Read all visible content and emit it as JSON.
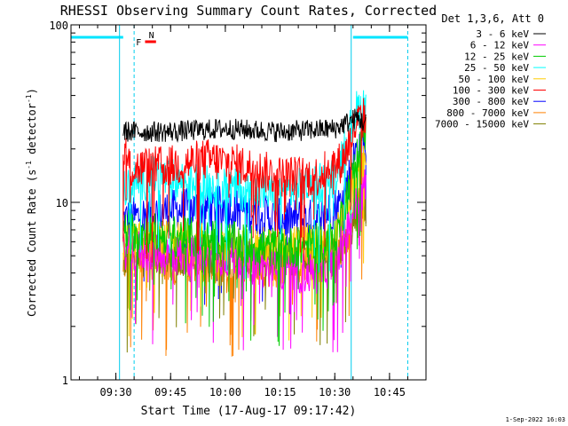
{
  "chart_data": {
    "type": "line",
    "title": "RHESSI Observing Summary Count Rates, Corrected",
    "xlabel": "Start Time (17-Aug-17 09:17:42)",
    "ylabel": "Corrected Count Rate (s⁻¹ detector⁻¹)",
    "ylabel_main": "Corrected Count Rate (s",
    "ylabel_sup1": "-1",
    "ylabel_mid": " detector",
    "ylabel_sup2": "-1",
    "ylabel_end": ")",
    "yscale": "log",
    "ylim": [
      1,
      100
    ],
    "xlim": [
      "09:17:42",
      "10:55:00"
    ],
    "x_ticks": [
      "09:30",
      "09:45",
      "10:00",
      "10:15",
      "10:30",
      "10:45"
    ],
    "y_ticks": [
      "1",
      "10",
      "100"
    ],
    "legend_title": "Det 1,3,6, Att 0",
    "legend_position": "right",
    "date_stamp": "1-Sep-2022 16:03",
    "flags": {
      "flare_label": "F",
      "night_label": "N"
    },
    "night_periods": [
      {
        "start": "09:17:42",
        "end": "09:32:00",
        "dashed_end": "09:35:00"
      },
      {
        "start": "10:35:00",
        "end": "10:50:00",
        "dashed_end": "10:50:00"
      }
    ],
    "series": [
      {
        "name": "3 - 6 keV",
        "color": "#000000",
        "values_by_x": [
          [
            "09:32",
            25
          ],
          [
            "09:45",
            25
          ],
          [
            "10:00",
            26
          ],
          [
            "10:15",
            25
          ],
          [
            "10:30",
            26
          ],
          [
            "10:36",
            30
          ],
          [
            "10:38",
            28
          ]
        ]
      },
      {
        "name": "6 - 12 keV",
        "color": "#ff00ff",
        "values_by_x": [
          [
            "09:32",
            5.5
          ],
          [
            "09:45",
            5
          ],
          [
            "10:00",
            5
          ],
          [
            "10:15",
            4
          ],
          [
            "10:25",
            4
          ],
          [
            "10:30",
            4.5
          ],
          [
            "10:36",
            10
          ],
          [
            "10:38",
            12
          ]
        ]
      },
      {
        "name": "12 - 25 keV",
        "color": "#00cc00",
        "values_by_x": [
          [
            "09:32",
            7
          ],
          [
            "09:45",
            6.5
          ],
          [
            "10:00",
            6
          ],
          [
            "10:15",
            5.5
          ],
          [
            "10:30",
            6
          ],
          [
            "10:36",
            18
          ],
          [
            "10:38",
            25
          ]
        ]
      },
      {
        "name": "25 - 50 keV",
        "color": "#00ffff",
        "values_by_x": [
          [
            "09:32",
            12
          ],
          [
            "09:40",
            14
          ],
          [
            "09:50",
            13
          ],
          [
            "10:00",
            12
          ],
          [
            "10:15",
            11
          ],
          [
            "10:30",
            14
          ],
          [
            "10:36",
            33
          ],
          [
            "10:38",
            35
          ]
        ]
      },
      {
        "name": "50 - 100 keV",
        "color": "#ffcc00",
        "values_by_x": [
          [
            "09:32",
            6
          ],
          [
            "09:45",
            6
          ],
          [
            "10:00",
            5.8
          ],
          [
            "10:15",
            5.5
          ],
          [
            "10:30",
            6
          ],
          [
            "10:36",
            14
          ],
          [
            "10:38",
            16
          ]
        ]
      },
      {
        "name": "100 - 300 keV",
        "color": "#ff0000",
        "values_by_x": [
          [
            "09:32",
            20
          ],
          [
            "09:34",
            15.5
          ],
          [
            "09:45",
            16
          ],
          [
            "09:55",
            17.5
          ],
          [
            "10:05",
            16
          ],
          [
            "10:15",
            14
          ],
          [
            "10:25",
            14
          ],
          [
            "10:32",
            17
          ],
          [
            "10:36",
            28
          ],
          [
            "10:38",
            30
          ]
        ]
      },
      {
        "name": "300 - 800 keV",
        "color": "#0000ff",
        "values_by_x": [
          [
            "09:32",
            8
          ],
          [
            "09:45",
            9
          ],
          [
            "10:00",
            9.5
          ],
          [
            "10:15",
            8
          ],
          [
            "10:25",
            8
          ],
          [
            "10:32",
            10
          ],
          [
            "10:36",
            20
          ],
          [
            "10:38",
            22
          ]
        ]
      },
      {
        "name": "800 - 7000 keV",
        "color": "#ff8000",
        "values_by_x": [
          [
            "09:32",
            5
          ],
          [
            "09:45",
            4.5
          ],
          [
            "10:00",
            4.6
          ],
          [
            "10:15",
            4.3
          ],
          [
            "10:30",
            4.8
          ],
          [
            "10:36",
            9
          ],
          [
            "10:38",
            10
          ]
        ]
      },
      {
        "name": "7000 - 15000 keV",
        "color": "#808000",
        "values_by_x": [
          [
            "09:32",
            5
          ],
          [
            "09:45",
            5
          ],
          [
            "10:00",
            5
          ],
          [
            "10:15",
            5
          ],
          [
            "10:30",
            5
          ],
          [
            "10:36",
            8
          ],
          [
            "10:38",
            9
          ]
        ]
      }
    ]
  }
}
